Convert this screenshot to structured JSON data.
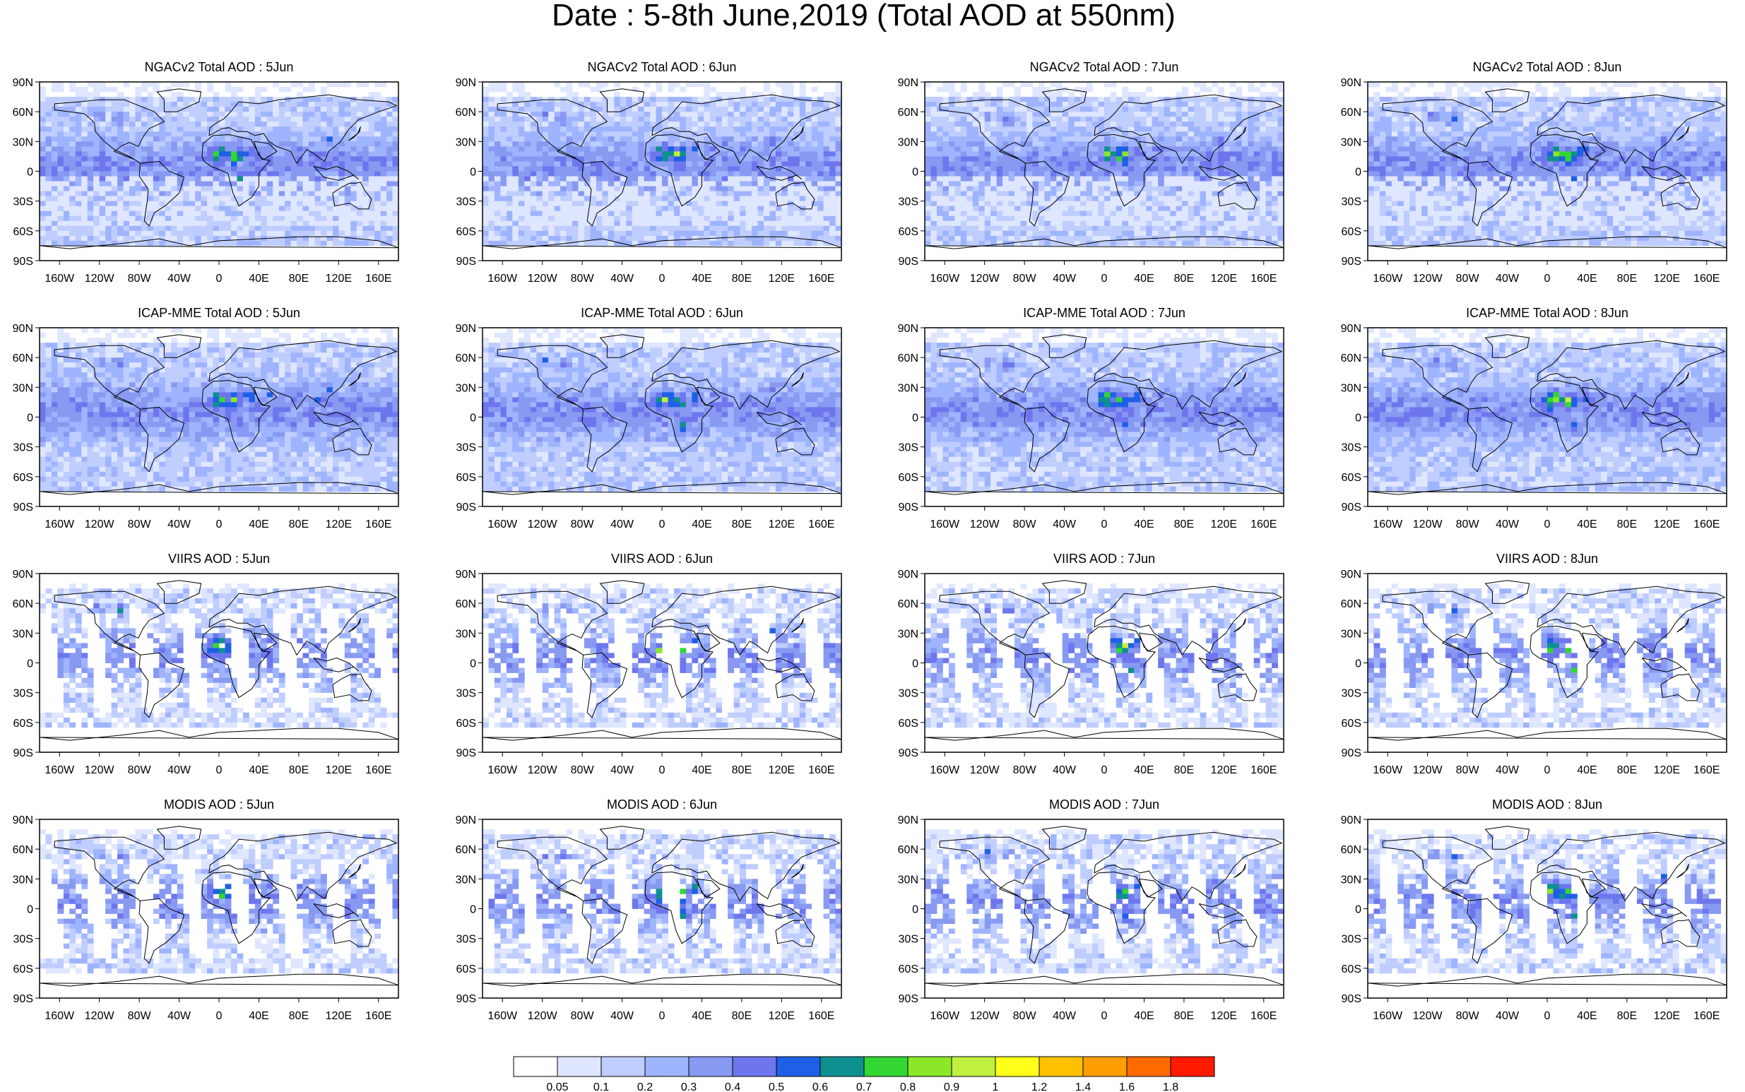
{
  "title": "Date : 5-8th June,2019 (Total AOD at 550nm)",
  "lat_labels": [
    "90N",
    "60N",
    "30N",
    "0",
    "30S",
    "60S",
    "90S"
  ],
  "lon_labels": [
    "160W",
    "120W",
    "80W",
    "40W",
    "0",
    "40E",
    "80E",
    "120E",
    "160E"
  ],
  "rows": [
    {
      "model": "NGACv2 Total AOD",
      "panels": [
        "NGACv2 Total AOD : 5Jun",
        "NGACv2 Total AOD : 6Jun",
        "NGACv2 Total AOD : 7Jun",
        "NGACv2 Total AOD : 8Jun"
      ],
      "coverage": "full"
    },
    {
      "model": "ICAP-MME Total AOD",
      "panels": [
        "ICAP-MME Total AOD : 5Jun",
        "ICAP-MME Total AOD : 6Jun",
        "ICAP-MME Total AOD : 7Jun",
        "ICAP-MME Total AOD : 8Jun"
      ],
      "coverage": "full"
    },
    {
      "model": "VIIRS AOD",
      "panels": [
        "VIIRS AOD : 5Jun",
        "VIIRS AOD : 6Jun",
        "VIIRS AOD : 7Jun",
        "VIIRS AOD : 8Jun"
      ],
      "coverage": "swath"
    },
    {
      "model": "MODIS AOD",
      "panels": [
        "MODIS AOD : 5Jun",
        "MODIS AOD : 6Jun",
        "MODIS AOD : 7Jun",
        "MODIS AOD : 8Jun"
      ],
      "coverage": "swath"
    }
  ],
  "colorbar": {
    "labels": [
      "0.05",
      "0.1",
      "0.2",
      "0.3",
      "0.4",
      "0.5",
      "0.6",
      "0.7",
      "0.8",
      "0.9",
      "1",
      "1.2",
      "1.4",
      "1.6",
      "1.8"
    ],
    "colors": [
      "#ffffff",
      "#dfe6ff",
      "#bfcdff",
      "#9fb4ff",
      "#8899f2",
      "#6e76ee",
      "#1f5fe6",
      "#0f9090",
      "#33d633",
      "#8ce62a",
      "#c0f040",
      "#ffff1a",
      "#ffc000",
      "#ff9e00",
      "#ff6a00",
      "#ff1a00"
    ]
  }
}
